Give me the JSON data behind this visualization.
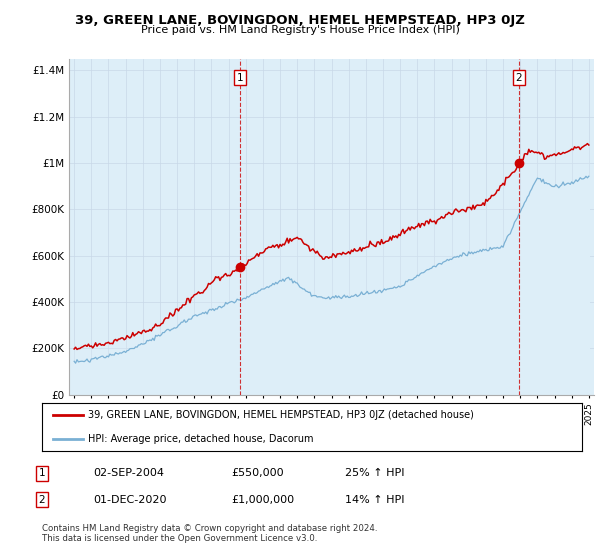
{
  "title": "39, GREEN LANE, BOVINGDON, HEMEL HEMPSTEAD, HP3 0JZ",
  "subtitle": "Price paid vs. HM Land Registry's House Price Index (HPI)",
  "ytick_values": [
    0,
    200000,
    400000,
    600000,
    800000,
    1000000,
    1200000,
    1400000
  ],
  "ylim": [
    0,
    1450000
  ],
  "xlim": [
    1994.7,
    2025.3
  ],
  "hpi_color": "#7ab0d4",
  "price_color": "#cc0000",
  "fill_color": "#ddeef8",
  "sale1_x": 2004.67,
  "sale1_price": 550000,
  "sale2_x": 2020.92,
  "sale2_price": 1000000,
  "legend_line1": "39, GREEN LANE, BOVINGDON, HEMEL HEMPSTEAD, HP3 0JZ (detached house)",
  "legend_line2": "HPI: Average price, detached house, Dacorum",
  "ann1_date": "02-SEP-2004",
  "ann1_price": "£550,000",
  "ann1_hpi": "25% ↑ HPI",
  "ann2_date": "01-DEC-2020",
  "ann2_price": "£1,000,000",
  "ann2_hpi": "14% ↑ HPI",
  "footer": "Contains HM Land Registry data © Crown copyright and database right 2024.\nThis data is licensed under the Open Government Licence v3.0.",
  "background_color": "#ffffff",
  "grid_color": "#c8d8e8"
}
